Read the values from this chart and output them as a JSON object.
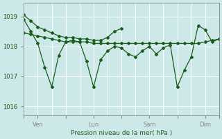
{
  "title": "",
  "xlabel": "Pression niveau de la mer( hPa )",
  "ylabel": "",
  "bg_color": "#cce8e8",
  "plot_bg_color": "#cce8e8",
  "line_color": "#1a5c1a",
  "grid_color": "#ffffff",
  "tick_label_color": "#1a5c1a",
  "axis_color": "#888888",
  "ylim": [
    1015.7,
    1019.45
  ],
  "yticks": [
    1016,
    1017,
    1018,
    1019
  ],
  "xtick_labels": [
    "",
    "Ven",
    "",
    "Lun",
    "",
    "Sam",
    "",
    "Dim",
    ""
  ],
  "xtick_positions": [
    0,
    12,
    36,
    60,
    84,
    108,
    132,
    156,
    168
  ],
  "series1_x": [
    0,
    6,
    12,
    18,
    24,
    30,
    36,
    42,
    48,
    54,
    60,
    66,
    72,
    78,
    84
  ],
  "series1": [
    1019.05,
    1018.85,
    1018.65,
    1018.55,
    1018.45,
    1018.35,
    1018.3,
    1018.3,
    1018.25,
    1018.25,
    1018.2,
    1018.2,
    1018.3,
    1018.5,
    1018.6
  ],
  "series2_x": [
    0,
    6,
    12,
    18,
    24,
    30,
    36,
    42,
    48,
    54,
    60,
    66,
    72,
    78,
    84,
    90,
    96,
    102,
    108,
    114,
    120,
    126,
    132,
    138,
    144,
    150,
    156,
    162,
    168
  ],
  "series2": [
    1018.45,
    1018.4,
    1018.35,
    1018.3,
    1018.25,
    1018.2,
    1018.15,
    1018.15,
    1018.15,
    1018.15,
    1018.1,
    1018.1,
    1018.1,
    1018.1,
    1018.1,
    1018.1,
    1018.1,
    1018.1,
    1018.1,
    1018.1,
    1018.1,
    1018.1,
    1018.1,
    1018.1,
    1018.1,
    1018.1,
    1018.15,
    1018.2,
    1018.25
  ],
  "series3_x": [
    0,
    6,
    12,
    18,
    24,
    30,
    36,
    42,
    48,
    54,
    60,
    66,
    72,
    78,
    84,
    90,
    96,
    102,
    108,
    114,
    120,
    126,
    132,
    138,
    144,
    150,
    156,
    162,
    168
  ],
  "series3": [
    1018.9,
    1018.5,
    1018.1,
    1017.3,
    1016.65,
    1017.7,
    1018.15,
    1018.2,
    1018.15,
    1017.5,
    1016.65,
    1017.55,
    1017.85,
    1018.0,
    1017.95,
    1017.75,
    1017.65,
    1017.85,
    1018.0,
    1017.75,
    1017.95,
    1018.05,
    1016.65,
    1017.2,
    1017.65,
    1018.7,
    1018.55,
    1018.15,
    1018.25
  ],
  "xmax": 168
}
